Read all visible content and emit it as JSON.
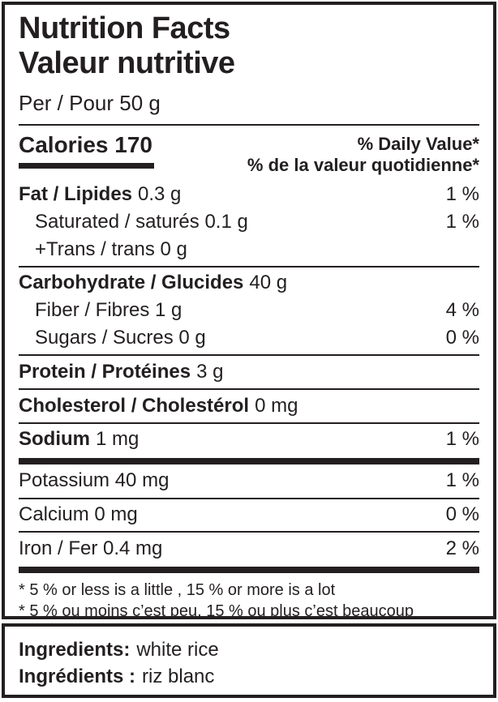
{
  "label": {
    "title_en": "Nutrition Facts",
    "title_fr": "Valeur nutritive",
    "serving": "Per / Pour 50 g",
    "calories_text": "Calories 170",
    "daily_value_header_en": "% Daily Value*",
    "daily_value_header_fr": "% de la valeur quotidienne*",
    "rows": [
      {
        "bold": "Fat / Lipides",
        "text": "0.3 g",
        "dv": "1 %",
        "indent": 0,
        "rule_after": "none"
      },
      {
        "bold": "",
        "text": "Saturated / saturés 0.1 g",
        "dv": "1 %",
        "indent": 1,
        "rule_after": "none"
      },
      {
        "bold": "",
        "text": "+Trans / trans 0 g",
        "dv": "",
        "indent": 1,
        "rule_after": "thin"
      },
      {
        "bold": "Carbohydrate / Glucides",
        "text": "40 g",
        "dv": "",
        "indent": 0,
        "rule_after": "none"
      },
      {
        "bold": "",
        "text": "Fiber / Fibres 1 g",
        "dv": "4 %",
        "indent": 1,
        "rule_after": "none"
      },
      {
        "bold": "",
        "text": "Sugars / Sucres 0 g",
        "dv": "0 %",
        "indent": 1,
        "rule_after": "thin"
      },
      {
        "bold": "Protein / Protéines",
        "text": "3 g",
        "dv": "",
        "indent": 0,
        "rule_after": "thin"
      },
      {
        "bold": "Cholesterol / Cholestérol",
        "text": "0 mg",
        "dv": "",
        "indent": 0,
        "rule_after": "thin"
      },
      {
        "bold": "Sodium",
        "text": "1 mg",
        "dv": "1 %",
        "indent": 0,
        "rule_after": "thick"
      },
      {
        "bold": "",
        "text": "Potassium 40 mg",
        "dv": "1 %",
        "indent": 0,
        "rule_after": "thin"
      },
      {
        "bold": "",
        "text": "Calcium 0 mg",
        "dv": "0 %",
        "indent": 0,
        "rule_after": "thin"
      },
      {
        "bold": "",
        "text": "Iron / Fer 0.4 mg",
        "dv": "2 %",
        "indent": 0,
        "rule_after": "thick"
      }
    ],
    "footnotes": [
      "* 5 % or less is a little , 15 % or more is a lot",
      "* 5 % ou moins c’est peu, 15 % ou plus c’est beaucoup"
    ]
  },
  "ingredients": {
    "en_label": "Ingredients:",
    "en_value": "white rice",
    "fr_label": "Ingrédients :",
    "fr_value": "riz blanc"
  },
  "colors": {
    "text": "#231f20",
    "background": "#ffffff"
  }
}
